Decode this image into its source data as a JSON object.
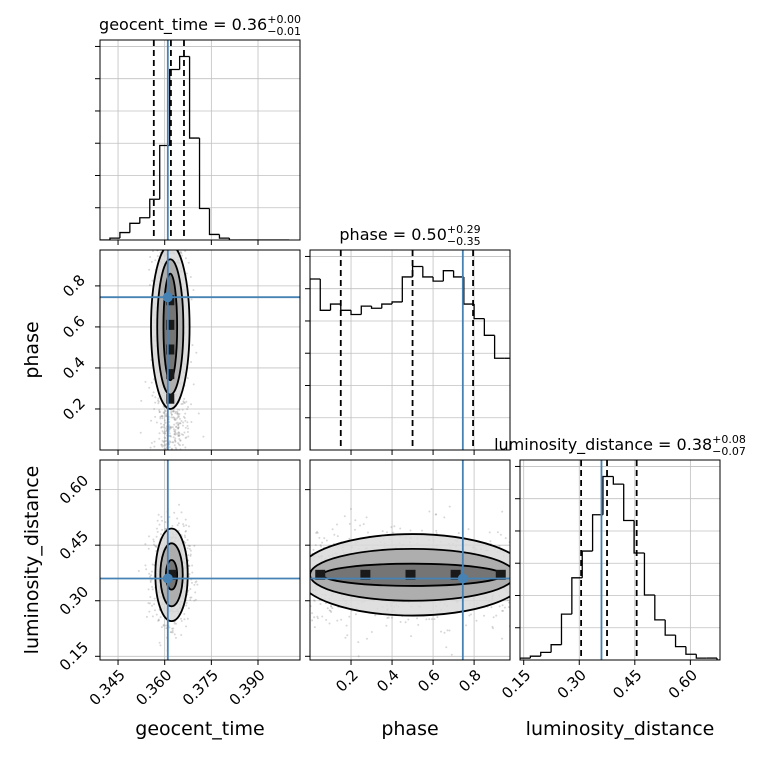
{
  "chart_data": {
    "type": "corner",
    "parameters": [
      "geocent_time",
      "phase",
      "luminosity_distance"
    ],
    "injection": {
      "geocent_time": 0.361,
      "phase": 0.745,
      "luminosity_distance": 0.36
    },
    "colors": {
      "truth": "#4682b4",
      "hist": "#000000",
      "grid": "#c0c0c0",
      "scatter": "#8c8c8c"
    },
    "grid": true,
    "titles": [
      {
        "param": "geocent_time",
        "prefix": "geocent_time = ",
        "median": "0.36",
        "plus": "+0.00",
        "minus": "−0.01"
      },
      {
        "param": "phase",
        "prefix": "phase = ",
        "median": "0.50",
        "plus": "+0.29",
        "minus": "−0.35"
      },
      {
        "param": "luminosity_distance",
        "prefix": "luminosity_distance = ",
        "median": "0.38",
        "plus": "+0.08",
        "minus": "−0.07"
      }
    ],
    "axes": {
      "geocent_time": {
        "label": "geocent_time",
        "range": [
          0.3392,
          0.4035
        ],
        "ticks": [
          0.345,
          0.36,
          0.375,
          0.39
        ],
        "tick_labels": [
          "0.345",
          "0.360",
          "0.375",
          "0.390"
        ]
      },
      "phase": {
        "label": "phase",
        "range": [
          0.0,
          0.975
        ],
        "ticks": [
          0.2,
          0.4,
          0.6,
          0.8
        ],
        "tick_labels": [
          "0.2",
          "0.4",
          "0.6",
          "0.8"
        ]
      },
      "luminosity_distance": {
        "label": "luminosity_distance",
        "range": [
          0.14,
          0.68
        ],
        "ticks": [
          0.15,
          0.3,
          0.45,
          0.6
        ],
        "tick_labels": [
          "0.15",
          "0.30",
          "0.45",
          "0.60"
        ]
      }
    },
    "marginals": {
      "geocent_time": {
        "quantiles": [
          0.3565,
          0.362,
          0.3662
        ],
        "bin_edges": [
          0.3392,
          0.3424,
          0.3456,
          0.3488,
          0.352,
          0.3552,
          0.3584,
          0.3616,
          0.3648,
          0.368,
          0.3712,
          0.3744,
          0.3776,
          0.3808,
          0.384,
          0.3872,
          0.3904,
          0.3936,
          0.3968,
          0.4
        ],
        "counts": [
          0,
          1,
          4,
          9,
          12,
          22,
          51,
          92,
          99,
          55,
          17,
          3,
          1,
          0,
          0,
          0,
          0,
          0,
          0
        ]
      },
      "phase": {
        "quantiles": [
          0.15,
          0.5,
          0.795
        ],
        "bin_edges": [
          0.0,
          0.05,
          0.1,
          0.15,
          0.2,
          0.25,
          0.3,
          0.35,
          0.4,
          0.45,
          0.5,
          0.55,
          0.6,
          0.65,
          0.7,
          0.75,
          0.8,
          0.85,
          0.9,
          0.95,
          1.0
        ],
        "counts": [
          82,
          67,
          70,
          67,
          65,
          69,
          68,
          70,
          71,
          83,
          88,
          83,
          81,
          86,
          83,
          70,
          63,
          55,
          44,
          44
        ]
      },
      "luminosity_distance": {
        "quantiles": [
          0.305,
          0.375,
          0.455
        ],
        "bin_edges": [
          0.14,
          0.168,
          0.196,
          0.224,
          0.252,
          0.28,
          0.308,
          0.336,
          0.364,
          0.392,
          0.42,
          0.448,
          0.476,
          0.504,
          0.532,
          0.56,
          0.588,
          0.616,
          0.644,
          0.672,
          0.7
        ],
        "counts": [
          1,
          2,
          4,
          8,
          24,
          43,
          57,
          76,
          96,
          92,
          73,
          56,
          34,
          21,
          13,
          7,
          3,
          1,
          1,
          0
        ]
      }
    },
    "joints": [
      {
        "x": "geocent_time",
        "y": "phase",
        "center": [
          0.3618,
          0.6
        ],
        "spread": [
          0.0028,
          0.3
        ],
        "contours": [
          {
            "level": 1,
            "dx": 0.0022,
            "dy": 0.26
          },
          {
            "level": 2,
            "dx": 0.0042,
            "dy": 0.33
          },
          {
            "level": 3,
            "dx": 0.0062,
            "dy": 0.4
          }
        ]
      },
      {
        "x": "geocent_time",
        "y": "luminosity_distance",
        "center": [
          0.3622,
          0.37
        ],
        "spread": [
          0.0028,
          0.065
        ],
        "contours": [
          {
            "level": 1,
            "dx": 0.0018,
            "dy": 0.04
          },
          {
            "level": 2,
            "dx": 0.0036,
            "dy": 0.085
          },
          {
            "level": 3,
            "dx": 0.0052,
            "dy": 0.125
          }
        ]
      },
      {
        "x": "phase",
        "y": "luminosity_distance",
        "center": [
          0.5,
          0.37
        ],
        "spread": [
          0.3,
          0.065
        ],
        "contours": [
          {
            "level": 1,
            "dx": 0.44,
            "dy": 0.03
          },
          {
            "level": 2,
            "dx": 0.5,
            "dy": 0.07
          },
          {
            "level": 3,
            "dx": 0.56,
            "dy": 0.11
          }
        ]
      }
    ]
  }
}
